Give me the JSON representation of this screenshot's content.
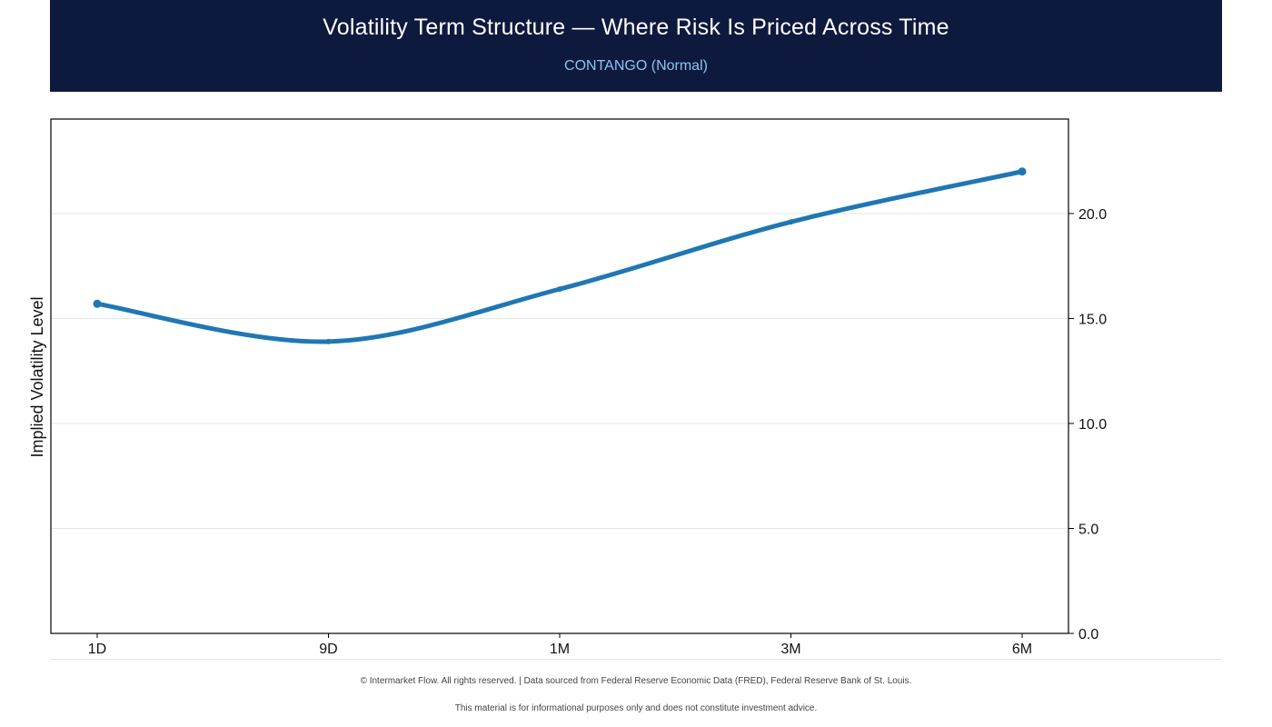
{
  "header": {
    "title": "Volatility Term Structure — Where Risk Is Priced Across Time",
    "subtitle": "CONTANGO (Normal)"
  },
  "colors": {
    "header_bg": "#0e1a3d",
    "subtitle": "#8ec3f0",
    "series": "#1f77b4"
  },
  "chart_data": {
    "type": "line",
    "categories": [
      "1D",
      "9D",
      "1M",
      "3M",
      "6M"
    ],
    "series": [
      {
        "values": [
          15.7,
          13.9,
          16.4,
          19.6,
          22.0
        ]
      }
    ],
    "ylabel": "Implied Volatility Level",
    "xlabel": "",
    "ylim": [
      0,
      24.5
    ],
    "yticks": [
      "0.0",
      "5.0",
      "10.0",
      "15.0",
      "20.0"
    ],
    "y_axis_side": "right",
    "grid": "horizontal",
    "smooth": true
  },
  "footer": {
    "line1": "© Intermarket Flow. All rights reserved.  |  Data sourced from Federal Reserve Economic Data (FRED), Federal Reserve Bank of St. Louis.",
    "line2": "This material is for informational purposes only and does not constitute investment advice."
  }
}
